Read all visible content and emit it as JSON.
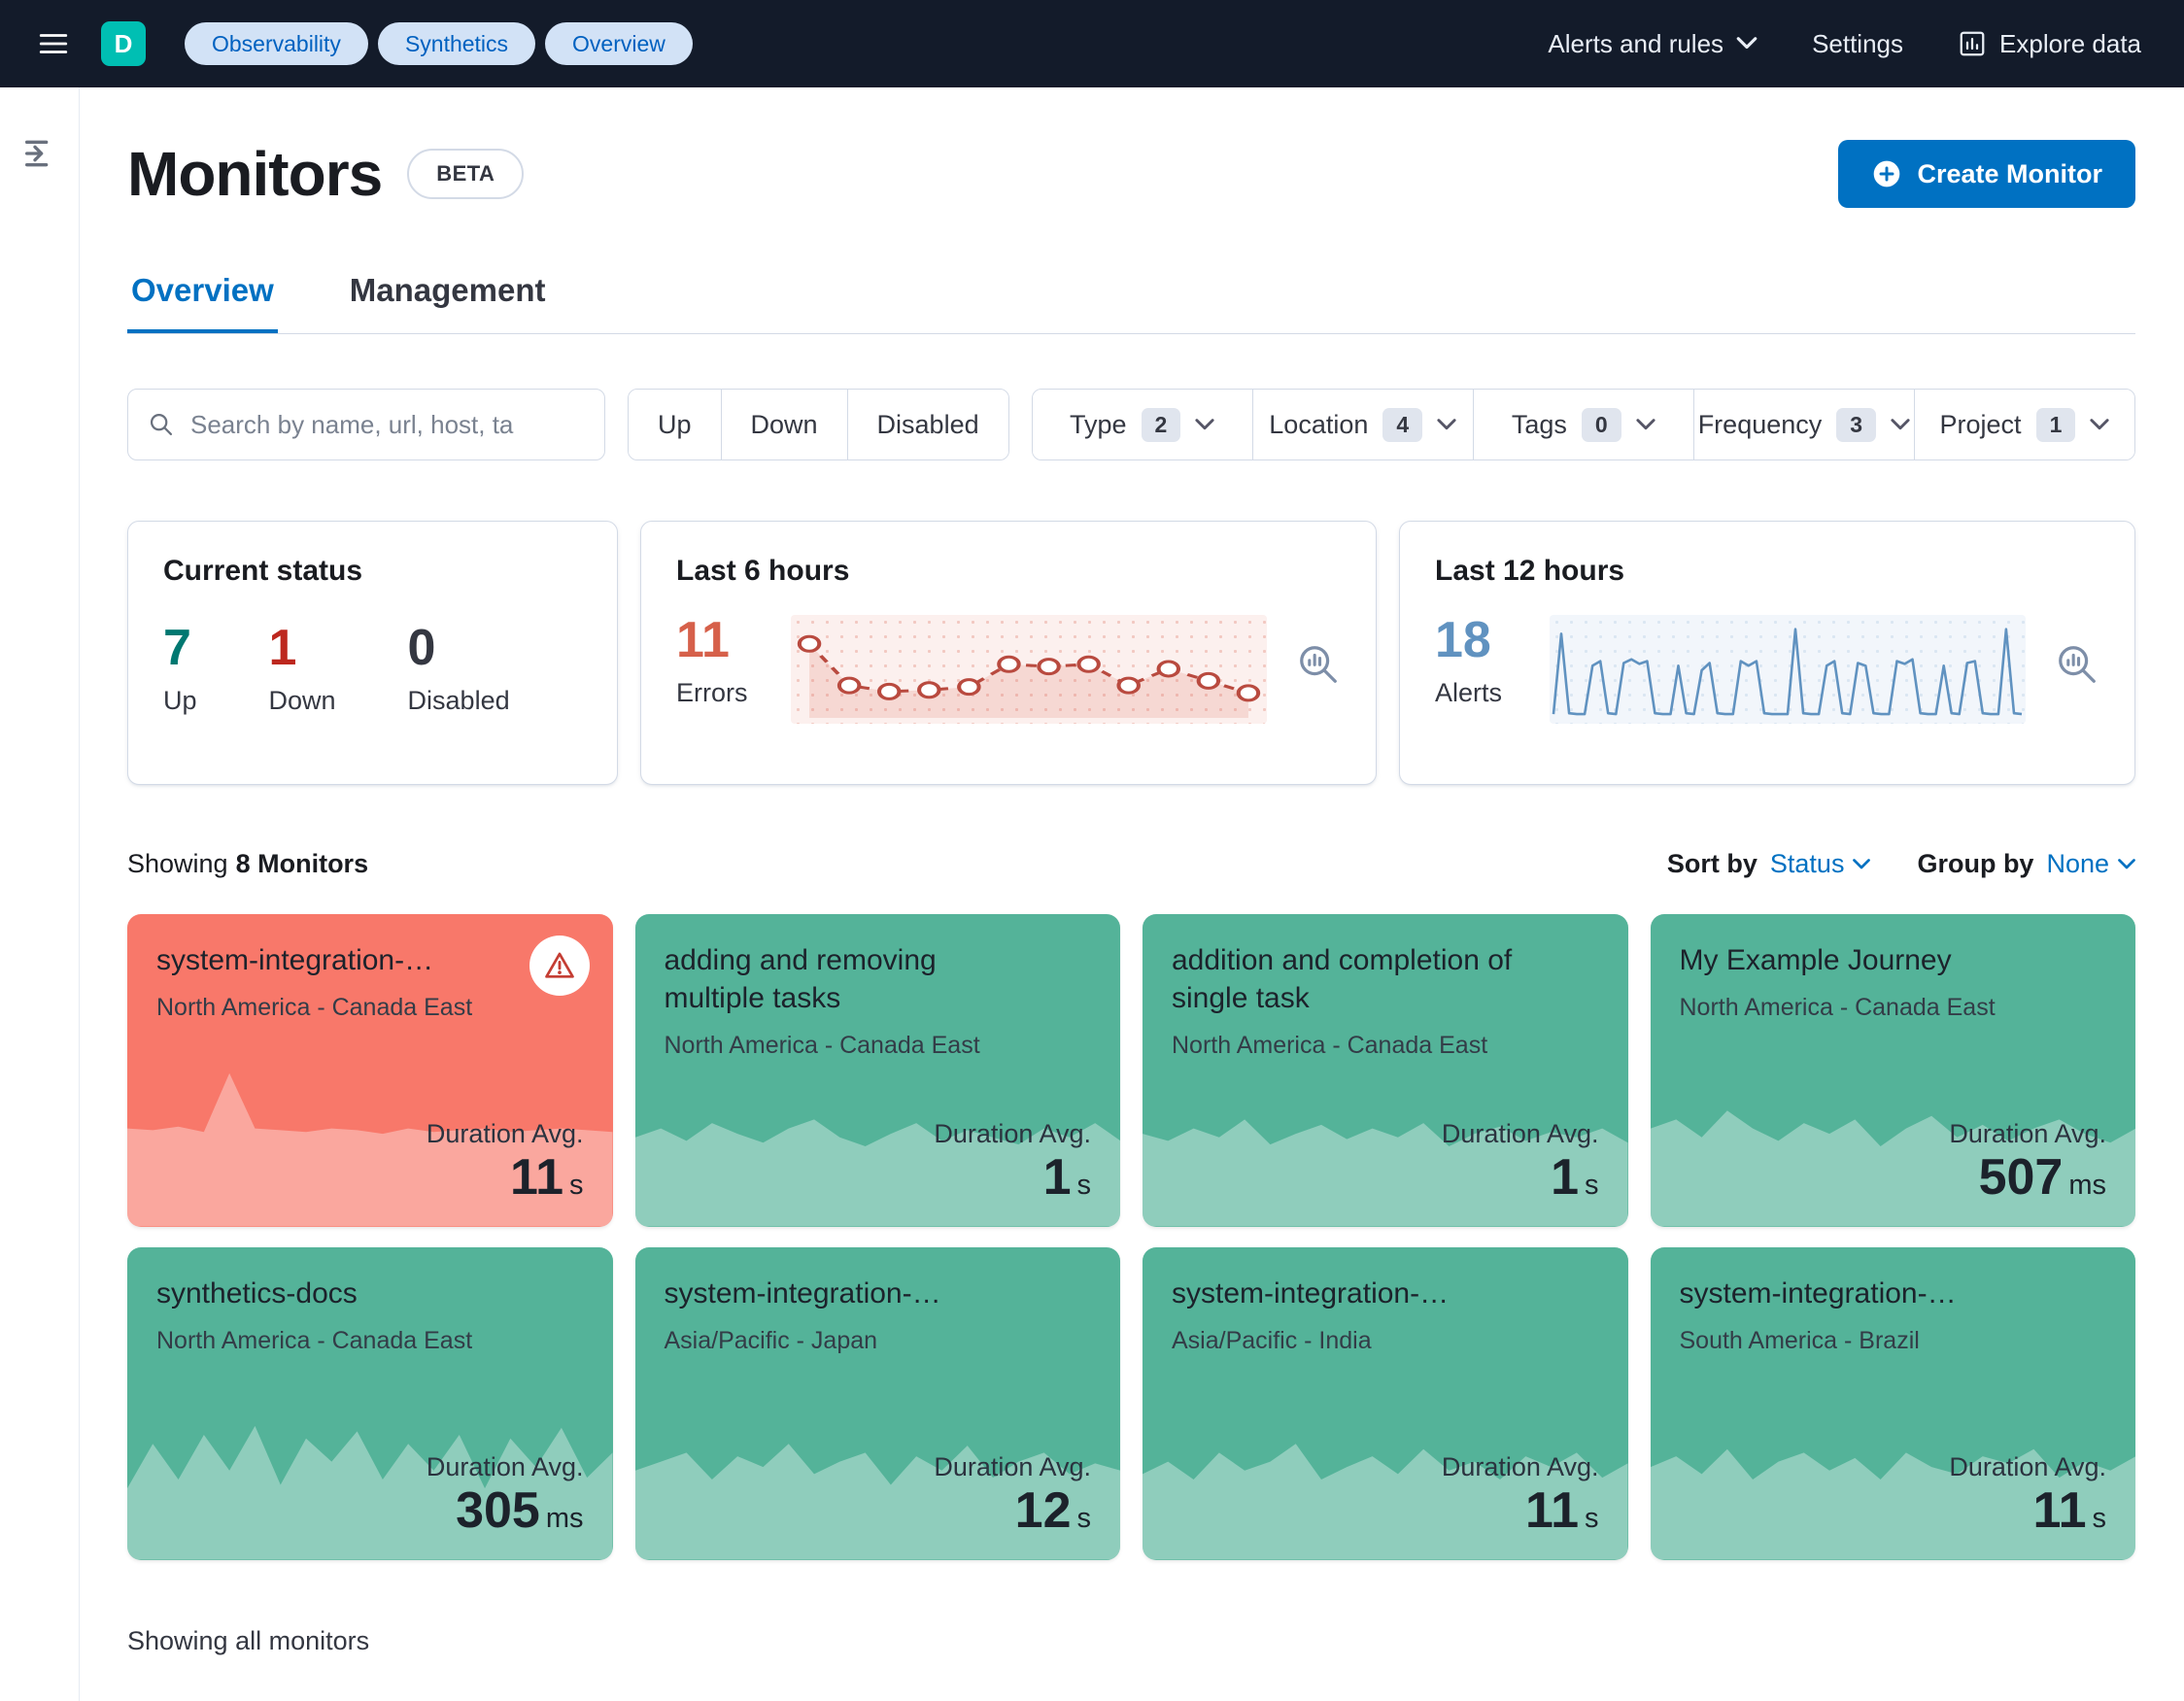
{
  "header": {
    "avatar": "D",
    "breadcrumbs": [
      "Observability",
      "Synthetics",
      "Overview"
    ],
    "alerts_menu": "Alerts and rules",
    "settings": "Settings",
    "explore": "Explore data"
  },
  "page": {
    "title": "Monitors",
    "beta_badge": "BETA",
    "create_button": "Create Monitor",
    "tab_overview": "Overview",
    "tab_management": "Management"
  },
  "filters": {
    "search_placeholder": "Search by name, url, host, ta",
    "status_up": "Up",
    "status_down": "Down",
    "status_disabled": "Disabled",
    "items": [
      {
        "label": "Type",
        "count": "2"
      },
      {
        "label": "Location",
        "count": "4"
      },
      {
        "label": "Tags",
        "count": "0"
      },
      {
        "label": "Frequency",
        "count": "3"
      },
      {
        "label": "Project",
        "count": "1"
      }
    ]
  },
  "stats": {
    "current": {
      "title": "Current status",
      "up": {
        "value": "7",
        "label": "Up",
        "color": "#007871"
      },
      "down": {
        "value": "1",
        "label": "Down",
        "color": "#bd271e"
      },
      "disabled": {
        "value": "0",
        "label": "Disabled",
        "color": "#343741"
      }
    },
    "last6": {
      "title": "Last 6 hours",
      "value": "11",
      "label": "Errors",
      "color": "#d6604a",
      "line_color": "#b94a3f",
      "values": [
        85,
        30,
        22,
        24,
        28,
        58,
        55,
        58,
        30,
        52,
        36,
        20
      ]
    },
    "last12": {
      "title": "Last 12 hours",
      "value": "18",
      "label": "Alerts",
      "color": "#6092c0",
      "line_color": "#6092c0",
      "values": [
        2,
        90,
        3,
        2,
        2,
        55,
        60,
        3,
        2,
        58,
        62,
        57,
        60,
        3,
        2,
        2,
        55,
        3,
        2,
        50,
        58,
        3,
        2,
        2,
        60,
        55,
        60,
        3,
        2,
        2,
        2,
        95,
        3,
        2,
        2,
        55,
        60,
        3,
        2,
        58,
        55,
        3,
        2,
        2,
        60,
        57,
        62,
        3,
        2,
        2,
        55,
        3,
        2,
        58,
        60,
        3,
        2,
        2,
        95,
        3,
        2
      ]
    }
  },
  "monitors": {
    "showing_prefix": "Showing",
    "showing_count": "8 Monitors",
    "sort_label": "Sort by",
    "sort_value": "Status",
    "group_label": "Group by",
    "group_value": "None",
    "duration_label": "Duration Avg.",
    "footer": "Showing all monitors",
    "cards": [
      {
        "name": "system-integration-…",
        "location": "North America - Canada East",
        "status": "down",
        "duration_value": "11",
        "duration_unit": "s",
        "spark": [
          55,
          54,
          56,
          53,
          86,
          55,
          54,
          53,
          55,
          54,
          52,
          55,
          53,
          54,
          55,
          53,
          54,
          55,
          54,
          53
        ]
      },
      {
        "name": "adding and removing multiple tasks",
        "location": "North America - Canada East",
        "status": "up",
        "duration_value": "1",
        "duration_unit": "s",
        "spark": [
          50,
          55,
          48,
          58,
          52,
          47,
          55,
          60,
          50,
          45,
          52,
          58,
          48,
          54,
          50,
          46,
          55,
          50,
          58,
          48
        ]
      },
      {
        "name": "addition and completion of single task",
        "location": "North America - Canada East",
        "status": "up",
        "duration_value": "1",
        "duration_unit": "s",
        "spark": [
          52,
          48,
          55,
          50,
          60,
          46,
          52,
          57,
          49,
          55,
          50,
          58,
          45,
          52,
          56,
          48,
          53,
          50,
          55,
          47
        ]
      },
      {
        "name": "My Example Journey",
        "location": "North America - Canada East",
        "status": "up",
        "duration_value": "507",
        "duration_unit": "ms",
        "spark": [
          55,
          60,
          50,
          65,
          55,
          48,
          58,
          52,
          60,
          45,
          55,
          62,
          50,
          57,
          48,
          55,
          60,
          52,
          47,
          55
        ]
      },
      {
        "name": "synthetics-docs",
        "location": "North America - Canada East",
        "status": "up",
        "duration_value": "305",
        "duration_unit": "ms",
        "spark": [
          40,
          65,
          45,
          70,
          50,
          75,
          42,
          68,
          55,
          72,
          45,
          65,
          50,
          70,
          40,
          68,
          52,
          74,
          46,
          60
        ]
      },
      {
        "name": "system-integration-…",
        "location": "Asia/Pacific - Japan",
        "status": "up",
        "duration_value": "12",
        "duration_unit": "s",
        "spark": [
          50,
          55,
          60,
          45,
          58,
          52,
          65,
          48,
          55,
          60,
          42,
          58,
          50,
          64,
          46,
          55,
          60,
          48,
          54,
          50
        ]
      },
      {
        "name": "system-integration-…",
        "location": "Asia/Pacific - India",
        "status": "up",
        "duration_value": "11",
        "duration_unit": "s",
        "spark": [
          48,
          55,
          45,
          60,
          50,
          55,
          65,
          45,
          52,
          58,
          48,
          62,
          50,
          55,
          45,
          58,
          52,
          60,
          46,
          54
        ]
      },
      {
        "name": "system-integration-…",
        "location": "South America - Brazil",
        "status": "up",
        "duration_value": "11",
        "duration_unit": "s",
        "spark": [
          52,
          58,
          48,
          62,
          45,
          55,
          60,
          50,
          57,
          45,
          60,
          52,
          48,
          58,
          54,
          62,
          46,
          55,
          50,
          58
        ]
      }
    ]
  },
  "colors": {
    "accent_blue": "#0071c2",
    "card_up": "#54b399",
    "card_down": "#f8786a",
    "header_bg": "#131b2a"
  }
}
